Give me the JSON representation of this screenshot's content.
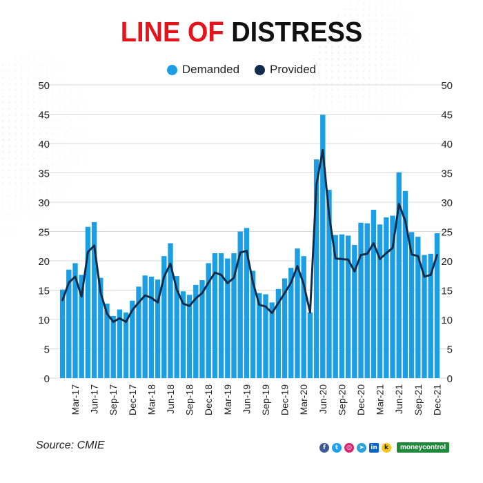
{
  "title": {
    "part1": "LINE OF",
    "part2": "DISTRESS"
  },
  "legend": [
    {
      "label": "Demanded",
      "color": "#1b9ee3"
    },
    {
      "label": "Provided",
      "color": "#0f2d4a"
    }
  ],
  "source": "Source: CMIE",
  "brand": {
    "logo_text": "moneycontrol",
    "social_icons": [
      "facebook-icon",
      "twitter-icon",
      "instagram-icon",
      "telegram-icon",
      "linkedin-icon",
      "koo-icon"
    ]
  },
  "chart_data": {
    "type": "bar",
    "series": [
      {
        "name": "Demanded",
        "kind": "bar",
        "color": "#1b9ee3",
        "values": [
          15.1,
          18.5,
          19.6,
          17.6,
          25.8,
          26.6,
          17.1,
          12.7,
          10.6,
          11.7,
          11.2,
          13.2,
          15.6,
          17.5,
          17.3,
          16.8,
          20.8,
          23.0,
          17.4,
          14.8,
          14.2,
          15.9,
          16.7,
          19.6,
          21.3,
          21.3,
          20.4,
          21.3,
          25.0,
          25.6,
          18.3,
          14.5,
          14.3,
          12.9,
          15.2,
          17.0,
          18.8,
          22.1,
          20.8,
          11.2,
          37.3,
          44.9,
          32.1,
          24.4,
          24.5,
          24.3,
          22.7,
          26.5,
          26.4,
          28.7,
          26.2,
          27.4,
          27.7,
          35.1,
          31.9,
          24.9,
          24.1,
          21.0,
          21.2,
          24.7
        ]
      },
      {
        "name": "Provided",
        "kind": "line",
        "color": "#0f2d4a",
        "values": [
          13.3,
          16.3,
          17.3,
          13.9,
          21.5,
          22.6,
          14.6,
          11.0,
          9.6,
          10.2,
          9.6,
          11.6,
          12.9,
          14.1,
          13.7,
          12.9,
          17.3,
          19.5,
          15.1,
          12.7,
          12.3,
          13.6,
          14.5,
          16.3,
          18.0,
          17.6,
          16.2,
          17.1,
          21.4,
          21.7,
          16.3,
          12.5,
          12.2,
          11.1,
          12.8,
          14.5,
          16.3,
          19.1,
          16.0,
          11.2,
          33.0,
          38.9,
          27.8,
          20.4,
          20.3,
          20.2,
          18.2,
          21.0,
          21.2,
          23.0,
          20.3,
          21.3,
          22.2,
          29.7,
          26.8,
          21.1,
          20.8,
          17.3,
          17.6,
          21.0
        ]
      }
    ],
    "x_tick_labels": [
      "Mar-17",
      "Jun-17",
      "Sep-17",
      "Dec-17",
      "Mar-18",
      "Jun-18",
      "Sep-18",
      "Dec-18",
      "Mar-19",
      "Jun-19",
      "Sep-19",
      "Dec-19",
      "Mar-20",
      "Jun-20",
      "Sep-20",
      "Dec-20",
      "Mar-21",
      "Jun-21",
      "Sep-21",
      "Dec-21"
    ],
    "x_tick_first_index": 2,
    "x_tick_step": 3,
    "y_ticks": [
      0,
      5,
      10,
      15,
      20,
      25,
      30,
      35,
      40,
      45,
      50
    ],
    "ylim": [
      0,
      50
    ],
    "grid": true,
    "legend_position": "top-center"
  }
}
